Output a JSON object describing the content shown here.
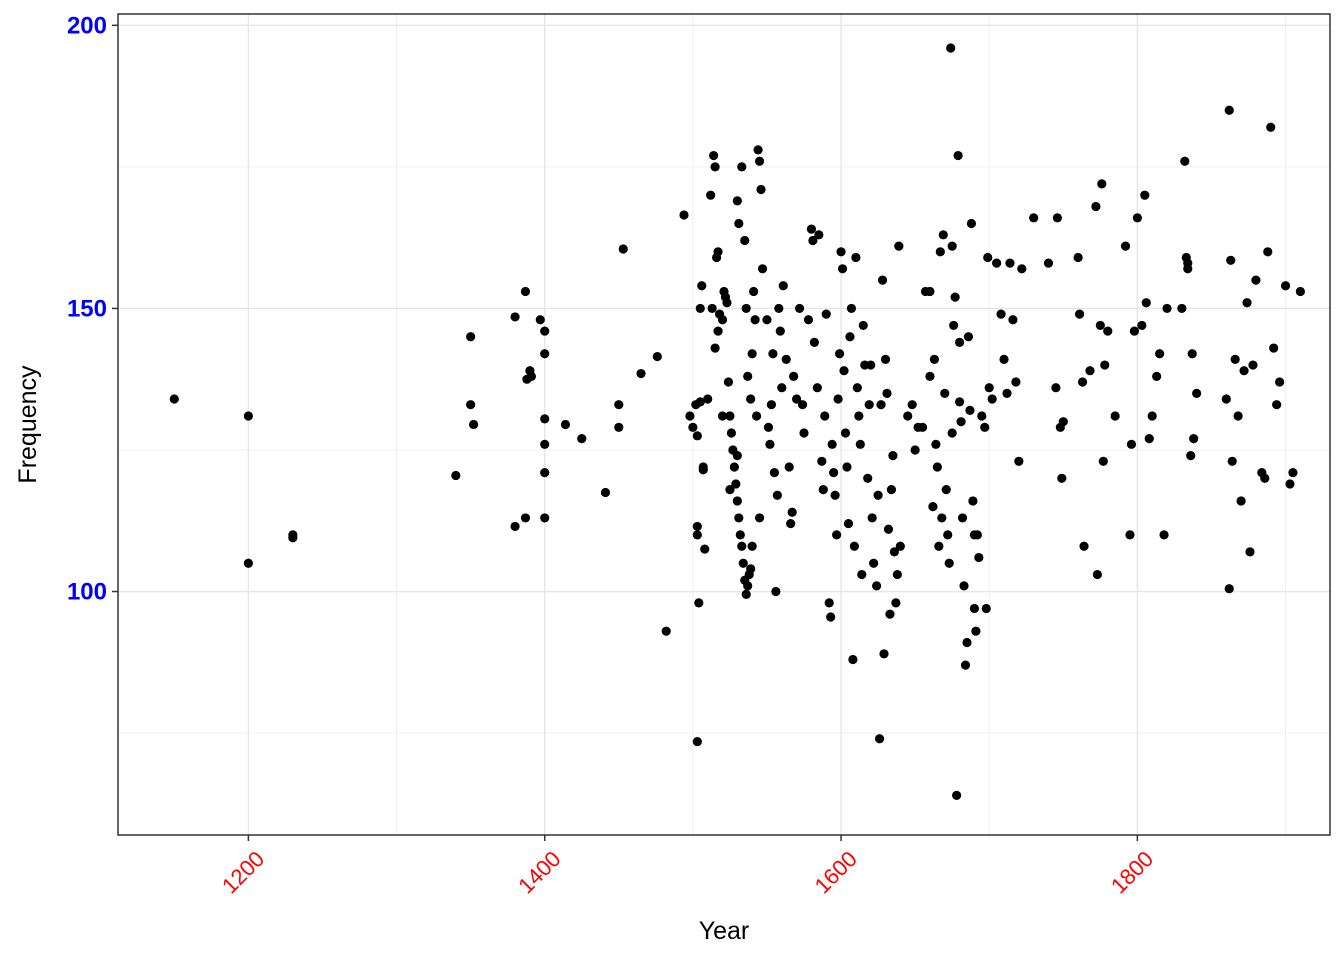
{
  "chart_data": {
    "type": "scatter",
    "title": "",
    "xlabel": "Year",
    "ylabel": "Frequency",
    "xlim": [
      1112,
      1930
    ],
    "ylim": [
      57,
      202
    ],
    "x_ticks": [
      1200,
      1400,
      1600,
      1800
    ],
    "x_tick_labels": [
      "1200",
      "1400",
      "1600",
      "1800"
    ],
    "y_ticks": [
      100,
      150,
      200
    ],
    "y_tick_labels": [
      "100",
      "150",
      "200"
    ],
    "grid": true,
    "legend": "none",
    "x_tick_color": "#ff0000",
    "y_tick_color": "#0000ff",
    "point_color": "#000000",
    "points": [
      [
        1150,
        134
      ],
      [
        1200,
        131
      ],
      [
        1200,
        105
      ],
      [
        1230,
        110
      ],
      [
        1230,
        109.5
      ],
      [
        1340,
        120.5
      ],
      [
        1350,
        145
      ],
      [
        1350,
        133
      ],
      [
        1352,
        129.5
      ],
      [
        1380,
        148.5
      ],
      [
        1380,
        111.5
      ],
      [
        1387,
        153
      ],
      [
        1387,
        113
      ],
      [
        1388,
        137.5
      ],
      [
        1390,
        139
      ],
      [
        1391,
        138
      ],
      [
        1397,
        148
      ],
      [
        1400,
        146
      ],
      [
        1400,
        142
      ],
      [
        1400,
        130.5
      ],
      [
        1400,
        126
      ],
      [
        1400,
        121
      ],
      [
        1400,
        113
      ],
      [
        1414,
        129.5
      ],
      [
        1425,
        127
      ],
      [
        1441,
        117.5
      ],
      [
        1450,
        133
      ],
      [
        1450,
        129
      ],
      [
        1453,
        160.5
      ],
      [
        1465,
        138.5
      ],
      [
        1476,
        141.5
      ],
      [
        1482,
        93
      ],
      [
        1494,
        166.5
      ],
      [
        1498,
        131
      ],
      [
        1500,
        129
      ],
      [
        1502,
        133
      ],
      [
        1503,
        127.5
      ],
      [
        1503,
        111.5
      ],
      [
        1503,
        110
      ],
      [
        1503,
        73.5
      ],
      [
        1504,
        98
      ],
      [
        1505,
        133.5
      ],
      [
        1505,
        150
      ],
      [
        1506,
        154
      ],
      [
        1507,
        122
      ],
      [
        1507,
        121.5
      ],
      [
        1508,
        107.5
      ],
      [
        1510,
        134
      ],
      [
        1512,
        170
      ],
      [
        1513,
        150
      ],
      [
        1514,
        177
      ],
      [
        1515,
        175
      ],
      [
        1516,
        159
      ],
      [
        1517,
        146
      ],
      [
        1517,
        160
      ],
      [
        1518,
        149
      ],
      [
        1520,
        148
      ],
      [
        1521,
        153
      ],
      [
        1522,
        152
      ],
      [
        1523,
        151
      ],
      [
        1524,
        137
      ],
      [
        1525,
        131
      ],
      [
        1526,
        128
      ],
      [
        1527,
        125
      ],
      [
        1528,
        122
      ],
      [
        1529,
        119
      ],
      [
        1530,
        116
      ],
      [
        1531,
        113
      ],
      [
        1532,
        110
      ],
      [
        1533,
        108
      ],
      [
        1534,
        105
      ],
      [
        1535,
        102
      ],
      [
        1536,
        99.5
      ],
      [
        1537,
        101
      ],
      [
        1538,
        103
      ],
      [
        1539,
        104
      ],
      [
        1530,
        169
      ],
      [
        1531,
        165
      ],
      [
        1533,
        175
      ],
      [
        1535,
        162
      ],
      [
        1537,
        138
      ],
      [
        1539,
        134
      ],
      [
        1540,
        142
      ],
      [
        1541,
        153
      ],
      [
        1542,
        148
      ],
      [
        1543,
        131
      ],
      [
        1544,
        178
      ],
      [
        1545,
        176
      ],
      [
        1546,
        171
      ],
      [
        1547,
        157
      ],
      [
        1550,
        148
      ],
      [
        1551,
        129
      ],
      [
        1552,
        126
      ],
      [
        1553,
        133
      ],
      [
        1554,
        142
      ],
      [
        1555,
        121
      ],
      [
        1556,
        100
      ],
      [
        1557,
        117
      ],
      [
        1558,
        150
      ],
      [
        1559,
        146
      ],
      [
        1560,
        136
      ],
      [
        1561,
        154
      ],
      [
        1563,
        141
      ],
      [
        1565,
        122
      ],
      [
        1566,
        112
      ],
      [
        1567,
        114
      ],
      [
        1568,
        138
      ],
      [
        1570,
        134
      ],
      [
        1572,
        150
      ],
      [
        1574,
        133
      ],
      [
        1575,
        128
      ],
      [
        1578,
        148
      ],
      [
        1580,
        164
      ],
      [
        1581,
        162
      ],
      [
        1582,
        144
      ],
      [
        1584,
        136
      ],
      [
        1585,
        163
      ],
      [
        1587,
        123
      ],
      [
        1588,
        118
      ],
      [
        1589,
        131
      ],
      [
        1590,
        149
      ],
      [
        1592,
        98
      ],
      [
        1593,
        95.5
      ],
      [
        1594,
        126
      ],
      [
        1595,
        121
      ],
      [
        1596,
        117
      ],
      [
        1597,
        110
      ],
      [
        1598,
        134
      ],
      [
        1599,
        142
      ],
      [
        1600,
        160
      ],
      [
        1601,
        157
      ],
      [
        1602,
        139
      ],
      [
        1603,
        128
      ],
      [
        1604,
        122
      ],
      [
        1605,
        112
      ],
      [
        1606,
        145
      ],
      [
        1607,
        150
      ],
      [
        1608,
        88
      ],
      [
        1609,
        108
      ],
      [
        1610,
        159
      ],
      [
        1611,
        136
      ],
      [
        1612,
        131
      ],
      [
        1613,
        126
      ],
      [
        1614,
        103
      ],
      [
        1615,
        147
      ],
      [
        1616,
        140
      ],
      [
        1618,
        120
      ],
      [
        1619,
        133
      ],
      [
        1620,
        140
      ],
      [
        1621,
        113
      ],
      [
        1622,
        105
      ],
      [
        1624,
        101
      ],
      [
        1625,
        117
      ],
      [
        1626,
        74
      ],
      [
        1627,
        133
      ],
      [
        1628,
        155
      ],
      [
        1629,
        89
      ],
      [
        1630,
        141
      ],
      [
        1631,
        135
      ],
      [
        1632,
        111
      ],
      [
        1633,
        96
      ],
      [
        1634,
        118
      ],
      [
        1635,
        124
      ],
      [
        1636,
        107
      ],
      [
        1637,
        98
      ],
      [
        1638,
        103
      ],
      [
        1639,
        161
      ],
      [
        1640,
        108
      ],
      [
        1645,
        131
      ],
      [
        1648,
        133
      ],
      [
        1650,
        125
      ],
      [
        1652,
        129
      ],
      [
        1655,
        129
      ],
      [
        1657,
        153
      ],
      [
        1660,
        138
      ],
      [
        1662,
        115
      ],
      [
        1663,
        141
      ],
      [
        1664,
        126
      ],
      [
        1665,
        122
      ],
      [
        1666,
        108
      ],
      [
        1667,
        160
      ],
      [
        1668,
        113
      ],
      [
        1669,
        163
      ],
      [
        1670,
        135
      ],
      [
        1671,
        118
      ],
      [
        1672,
        110
      ],
      [
        1673,
        105
      ],
      [
        1674,
        196
      ],
      [
        1675,
        161
      ],
      [
        1676,
        147
      ],
      [
        1677,
        152
      ],
      [
        1678,
        64
      ],
      [
        1679,
        177
      ],
      [
        1680,
        144
      ],
      [
        1681,
        130
      ],
      [
        1682,
        113
      ],
      [
        1683,
        101
      ],
      [
        1684,
        87
      ],
      [
        1685,
        91
      ],
      [
        1686,
        145
      ],
      [
        1687,
        132
      ],
      [
        1688,
        165
      ],
      [
        1689,
        116
      ],
      [
        1690,
        97
      ],
      [
        1691,
        93
      ],
      [
        1692,
        110
      ],
      [
        1693,
        106
      ],
      [
        1695,
        131
      ],
      [
        1697,
        129
      ],
      [
        1698,
        97
      ],
      [
        1699,
        159
      ],
      [
        1700,
        136
      ],
      [
        1702,
        134
      ],
      [
        1705,
        158
      ],
      [
        1708,
        149
      ],
      [
        1710,
        141
      ],
      [
        1712,
        135
      ],
      [
        1714,
        158
      ],
      [
        1716,
        148
      ],
      [
        1718,
        137
      ],
      [
        1720,
        123
      ],
      [
        1722,
        157
      ],
      [
        1730,
        166
      ],
      [
        1740,
        158
      ],
      [
        1745,
        136
      ],
      [
        1746,
        166
      ],
      [
        1748,
        129
      ],
      [
        1749,
        120
      ],
      [
        1750,
        130
      ],
      [
        1760,
        159
      ],
      [
        1761,
        149
      ],
      [
        1763,
        137
      ],
      [
        1764,
        108
      ],
      [
        1768,
        139
      ],
      [
        1772,
        168
      ],
      [
        1773,
        103
      ],
      [
        1775,
        147
      ],
      [
        1776,
        172
      ],
      [
        1777,
        123
      ],
      [
        1778,
        140
      ],
      [
        1780,
        146
      ],
      [
        1785,
        131
      ],
      [
        1792,
        161
      ],
      [
        1795,
        110
      ],
      [
        1796,
        126
      ],
      [
        1798,
        146
      ],
      [
        1800,
        166
      ],
      [
        1803,
        147
      ],
      [
        1805,
        170
      ],
      [
        1806,
        151
      ],
      [
        1808,
        127
      ],
      [
        1810,
        131
      ],
      [
        1813,
        138
      ],
      [
        1815,
        142
      ],
      [
        1818,
        110
      ],
      [
        1820,
        150
      ],
      [
        1830,
        150
      ],
      [
        1832,
        176
      ],
      [
        1834,
        158
      ],
      [
        1836,
        124
      ],
      [
        1837,
        142
      ],
      [
        1838,
        127
      ],
      [
        1840,
        135
      ],
      [
        1860,
        134
      ],
      [
        1862,
        185
      ],
      [
        1864,
        123
      ],
      [
        1866,
        141
      ],
      [
        1868,
        131
      ],
      [
        1870,
        116
      ],
      [
        1872,
        139
      ],
      [
        1874,
        151
      ],
      [
        1876,
        107
      ],
      [
        1878,
        140
      ],
      [
        1880,
        155
      ],
      [
        1884,
        121
      ],
      [
        1886,
        120
      ],
      [
        1888,
        160
      ],
      [
        1890,
        182
      ],
      [
        1892,
        143
      ],
      [
        1894,
        133
      ],
      [
        1896,
        137
      ],
      [
        1900,
        154
      ],
      [
        1903,
        119
      ],
      [
        1905,
        121
      ],
      [
        1910,
        153
      ],
      [
        1862,
        100.5
      ],
      [
        1863,
        158.5
      ],
      [
        1834,
        157
      ],
      [
        1833,
        159
      ],
      [
        1680,
        133.5
      ],
      [
        1675,
        128
      ],
      [
        1690,
        110
      ],
      [
        1660,
        153
      ],
      [
        1540,
        108
      ],
      [
        1545,
        113
      ],
      [
        1515,
        143
      ],
      [
        1520,
        131
      ],
      [
        1525,
        118
      ],
      [
        1530,
        124
      ],
      [
        1536,
        150
      ]
    ]
  }
}
